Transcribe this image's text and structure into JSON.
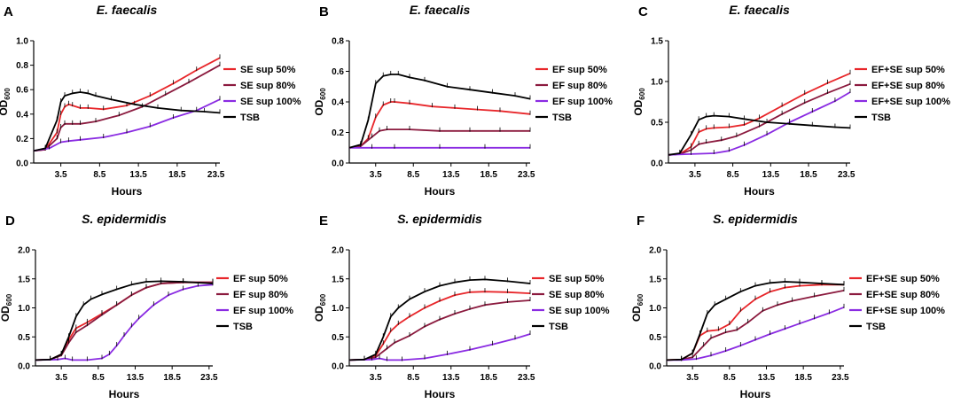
{
  "figure": {
    "x_label": "Hours",
    "y_label_main": "OD",
    "y_label_sub": "600"
  },
  "chart_data": [
    {
      "panel": "A",
      "type": "line",
      "title": "E. faecalis",
      "xlabel": "Hours",
      "ylabel": "OD600",
      "xlim": [
        0,
        24
      ],
      "ylim": [
        0,
        1.0
      ],
      "xticks": [
        3.5,
        8.5,
        13.5,
        18.5,
        23.5
      ],
      "yticks": [
        0.0,
        0.2,
        0.4,
        0.6,
        0.8,
        1.0
      ],
      "ytick_labels": [
        "0.0",
        "0.2",
        "0.4",
        "0.6",
        "0.8",
        "1.0"
      ],
      "series": [
        {
          "name": "SE sup 50%",
          "color": "#e8262a",
          "x": [
            0,
            1.5,
            3,
            3.5,
            4,
            4.5,
            5,
            6,
            7,
            9,
            12,
            15,
            18,
            21,
            24
          ],
          "y": [
            0.1,
            0.11,
            0.25,
            0.4,
            0.46,
            0.48,
            0.47,
            0.45,
            0.45,
            0.44,
            0.47,
            0.55,
            0.65,
            0.76,
            0.86
          ]
        },
        {
          "name": "SE sup 80%",
          "color": "#8b1a3e",
          "x": [
            0,
            1.5,
            3,
            3.5,
            4,
            5,
            6,
            8,
            11,
            14,
            17,
            20,
            24
          ],
          "y": [
            0.1,
            0.11,
            0.2,
            0.29,
            0.32,
            0.32,
            0.32,
            0.34,
            0.39,
            0.46,
            0.56,
            0.66,
            0.8
          ]
        },
        {
          "name": "SE sup 100%",
          "color": "#8a2be2",
          "x": [
            0,
            2,
            3.5,
            4.5,
            6,
            9,
            12,
            15,
            18,
            21,
            24
          ],
          "y": [
            0.1,
            0.12,
            0.17,
            0.18,
            0.19,
            0.21,
            0.25,
            0.3,
            0.37,
            0.43,
            0.52
          ]
        },
        {
          "name": "TSB",
          "color": "#000000",
          "x": [
            0,
            1.5,
            3,
            3.5,
            4,
            5,
            6,
            7,
            8,
            10,
            13,
            16,
            19,
            22,
            24
          ],
          "y": [
            0.1,
            0.12,
            0.35,
            0.5,
            0.55,
            0.57,
            0.58,
            0.57,
            0.55,
            0.52,
            0.48,
            0.45,
            0.43,
            0.42,
            0.41
          ]
        }
      ]
    },
    {
      "panel": "B",
      "type": "line",
      "title": "E. faecalis",
      "xlabel": "Hours",
      "ylabel": "OD600",
      "xlim": [
        0,
        24
      ],
      "ylim": [
        0,
        0.8
      ],
      "xticks": [
        3.5,
        8.5,
        13.5,
        18.5,
        23.5
      ],
      "yticks": [
        0.0,
        0.2,
        0.4,
        0.6,
        0.8
      ],
      "ytick_labels": [
        "0.0",
        "0.2",
        "0.4",
        "0.6",
        "0.8"
      ],
      "series": [
        {
          "name": "EF sup 50%",
          "color": "#e8262a",
          "x": [
            0,
            1.5,
            2.5,
            3.5,
            4.5,
            5.5,
            6,
            8,
            11,
            14,
            17,
            20,
            24
          ],
          "y": [
            0.1,
            0.11,
            0.16,
            0.3,
            0.38,
            0.4,
            0.4,
            0.39,
            0.37,
            0.36,
            0.35,
            0.34,
            0.32
          ]
        },
        {
          "name": "EF sup 80%",
          "color": "#8b1a3e",
          "x": [
            0,
            1.5,
            3,
            4,
            5,
            8,
            12,
            16,
            20,
            24
          ],
          "y": [
            0.1,
            0.11,
            0.17,
            0.21,
            0.22,
            0.22,
            0.21,
            0.21,
            0.21,
            0.21
          ]
        },
        {
          "name": "EF sup 100%",
          "color": "#8a2be2",
          "x": [
            0,
            3,
            6,
            12,
            18,
            24
          ],
          "y": [
            0.1,
            0.1,
            0.1,
            0.1,
            0.1,
            0.1
          ]
        },
        {
          "name": "TSB",
          "color": "#000000",
          "x": [
            0,
            1.5,
            2.5,
            3.5,
            4.5,
            5.5,
            6.5,
            8,
            10,
            13,
            16,
            19,
            22,
            24
          ],
          "y": [
            0.1,
            0.12,
            0.28,
            0.52,
            0.57,
            0.58,
            0.58,
            0.56,
            0.54,
            0.5,
            0.48,
            0.46,
            0.44,
            0.42
          ]
        }
      ]
    },
    {
      "panel": "C",
      "type": "line",
      "title": "E. faecalis",
      "xlabel": "Hours",
      "ylabel": "OD600",
      "xlim": [
        0,
        24
      ],
      "ylim": [
        0,
        1.5
      ],
      "xticks": [
        3.5,
        8.5,
        13.5,
        18.5,
        23.5
      ],
      "yticks": [
        0.0,
        0.5,
        1.0,
        1.5
      ],
      "ytick_labels": [
        "0.0",
        "0.5",
        "1.0",
        "1.5"
      ],
      "series": [
        {
          "name": "EF+SE sup 50%",
          "color": "#e8262a",
          "x": [
            0,
            1.5,
            3,
            4,
            5,
            6,
            8,
            10,
            12,
            15,
            18,
            21,
            24
          ],
          "y": [
            0.1,
            0.11,
            0.2,
            0.38,
            0.42,
            0.43,
            0.44,
            0.47,
            0.55,
            0.7,
            0.85,
            0.98,
            1.1
          ]
        },
        {
          "name": "EF+SE sup 80%",
          "color": "#8b1a3e",
          "x": [
            0,
            1.5,
            3,
            4,
            5,
            7,
            9,
            12,
            15,
            18,
            21,
            24
          ],
          "y": [
            0.1,
            0.11,
            0.16,
            0.23,
            0.25,
            0.28,
            0.33,
            0.45,
            0.6,
            0.74,
            0.86,
            0.97
          ]
        },
        {
          "name": "EF+SE sup 100%",
          "color": "#8a2be2",
          "x": [
            0,
            3,
            6,
            8,
            10,
            13,
            16,
            19,
            22,
            24
          ],
          "y": [
            0.1,
            0.11,
            0.12,
            0.15,
            0.22,
            0.35,
            0.5,
            0.63,
            0.76,
            0.87
          ]
        },
        {
          "name": "TSB",
          "color": "#000000",
          "x": [
            0,
            1.5,
            3,
            4,
            5,
            6,
            8,
            10,
            13,
            16,
            19,
            22,
            24
          ],
          "y": [
            0.1,
            0.12,
            0.35,
            0.53,
            0.57,
            0.58,
            0.57,
            0.54,
            0.5,
            0.48,
            0.46,
            0.44,
            0.43
          ]
        }
      ]
    },
    {
      "panel": "D",
      "type": "line",
      "title": "S. epidermidis",
      "xlabel": "Hours",
      "ylabel": "OD600",
      "xlim": [
        0,
        24
      ],
      "ylim": [
        0,
        2.0
      ],
      "xticks": [
        3.5,
        8.5,
        13.5,
        18.5,
        23.5
      ],
      "yticks": [
        0.0,
        0.5,
        1.0,
        1.5,
        2.0
      ],
      "ytick_labels": [
        "0.0",
        "0.5",
        "1.0",
        "1.5",
        "2.0"
      ],
      "series": [
        {
          "name": "EF sup 50%",
          "color": "#e8262a",
          "x": [
            0,
            2,
            3.5,
            4.5,
            5.5,
            7,
            9,
            11,
            13,
            15,
            17,
            20,
            24
          ],
          "y": [
            0.1,
            0.11,
            0.2,
            0.45,
            0.65,
            0.75,
            0.9,
            1.05,
            1.22,
            1.35,
            1.42,
            1.44,
            1.44
          ]
        },
        {
          "name": "EF sup 80%",
          "color": "#8b1a3e",
          "x": [
            0,
            2,
            3.5,
            4.5,
            5.5,
            7,
            9,
            11,
            13,
            15,
            17,
            20,
            24
          ],
          "y": [
            0.1,
            0.11,
            0.18,
            0.4,
            0.58,
            0.7,
            0.88,
            1.05,
            1.22,
            1.35,
            1.42,
            1.44,
            1.44
          ]
        },
        {
          "name": "EF sup 100%",
          "color": "#8a2be2",
          "x": [
            0,
            3,
            4,
            5,
            7,
            9,
            10,
            11,
            12,
            13,
            14,
            16,
            18,
            20,
            22,
            24
          ],
          "y": [
            0.1,
            0.11,
            0.13,
            0.1,
            0.1,
            0.13,
            0.2,
            0.35,
            0.52,
            0.68,
            0.82,
            1.05,
            1.22,
            1.32,
            1.38,
            1.4
          ]
        },
        {
          "name": "TSB",
          "color": "#000000",
          "x": [
            0,
            2,
            3.5,
            4.5,
            5.5,
            6.5,
            7.5,
            9,
            11,
            13,
            15,
            17,
            20,
            24
          ],
          "y": [
            0.1,
            0.11,
            0.2,
            0.5,
            0.85,
            1.05,
            1.15,
            1.23,
            1.32,
            1.4,
            1.45,
            1.46,
            1.45,
            1.42
          ]
        }
      ]
    },
    {
      "panel": "E",
      "type": "line",
      "title": "S. epidermidis",
      "xlabel": "Hours",
      "ylabel": "OD600",
      "xlim": [
        0,
        24
      ],
      "ylim": [
        0,
        2.0
      ],
      "xticks": [
        3.5,
        8.5,
        13.5,
        18.5,
        23.5
      ],
      "yticks": [
        0.0,
        0.5,
        1.0,
        1.5,
        2.0
      ],
      "ytick_labels": [
        "0.0",
        "0.5",
        "1.0",
        "1.5",
        "2.0"
      ],
      "series": [
        {
          "name": "SE sup 50%",
          "color": "#e8262a",
          "x": [
            0,
            2,
            3.5,
            4.5,
            5.5,
            6.5,
            8,
            10,
            12,
            14,
            16,
            18,
            21,
            24
          ],
          "y": [
            0.1,
            0.11,
            0.18,
            0.38,
            0.6,
            0.72,
            0.85,
            1.0,
            1.12,
            1.22,
            1.27,
            1.28,
            1.27,
            1.25
          ]
        },
        {
          "name": "SE sup 80%",
          "color": "#8b1a3e",
          "x": [
            0,
            2,
            3.5,
            5,
            6,
            8,
            10,
            12,
            14,
            16,
            18,
            21,
            24
          ],
          "y": [
            0.1,
            0.11,
            0.15,
            0.3,
            0.4,
            0.52,
            0.68,
            0.8,
            0.9,
            0.98,
            1.05,
            1.1,
            1.13
          ]
        },
        {
          "name": "SE sup 100%",
          "color": "#8a2be2",
          "x": [
            0,
            3,
            4,
            5,
            7,
            10,
            13,
            16,
            19,
            22,
            24
          ],
          "y": [
            0.1,
            0.11,
            0.13,
            0.1,
            0.1,
            0.13,
            0.2,
            0.28,
            0.37,
            0.47,
            0.55
          ]
        },
        {
          "name": "TSB",
          "color": "#000000",
          "x": [
            0,
            2,
            3.5,
            4.5,
            5.5,
            6.5,
            8,
            10,
            12,
            14,
            16,
            18,
            21,
            24
          ],
          "y": [
            0.1,
            0.11,
            0.2,
            0.5,
            0.85,
            1.0,
            1.15,
            1.28,
            1.38,
            1.44,
            1.48,
            1.49,
            1.46,
            1.42
          ]
        }
      ]
    },
    {
      "panel": "F",
      "type": "line",
      "title": "S. epidermidis",
      "xlabel": "Hours",
      "ylabel": "OD600",
      "xlim": [
        0,
        24
      ],
      "ylim": [
        0,
        2.0
      ],
      "xticks": [
        3.5,
        8.5,
        13.5,
        18.5,
        23.5
      ],
      "yticks": [
        0.0,
        0.5,
        1.0,
        1.5,
        2.0
      ],
      "ytick_labels": [
        "0.0",
        "0.5",
        "1.0",
        "1.5",
        "2.0"
      ],
      "series": [
        {
          "name": "EF+SE sup 50%",
          "color": "#e8262a",
          "x": [
            0,
            2,
            3.5,
            4.5,
            5.5,
            7,
            8.5,
            10,
            12,
            14,
            16,
            18,
            21,
            24
          ],
          "y": [
            0.1,
            0.11,
            0.22,
            0.52,
            0.6,
            0.62,
            0.72,
            0.95,
            1.15,
            1.28,
            1.35,
            1.38,
            1.4,
            1.4
          ]
        },
        {
          "name": "EF+SE sup 80%",
          "color": "#8b1a3e",
          "x": [
            0,
            2,
            3.5,
            5,
            6,
            8,
            9.5,
            11,
            13,
            15,
            17,
            20,
            24
          ],
          "y": [
            0.1,
            0.11,
            0.15,
            0.35,
            0.48,
            0.58,
            0.62,
            0.75,
            0.95,
            1.05,
            1.12,
            1.2,
            1.3
          ]
        },
        {
          "name": "EF+SE sup 100%",
          "color": "#8a2be2",
          "x": [
            0,
            2,
            4,
            6,
            8,
            10,
            12,
            14,
            16,
            18,
            20,
            22,
            24
          ],
          "y": [
            0.1,
            0.1,
            0.12,
            0.18,
            0.26,
            0.35,
            0.45,
            0.55,
            0.64,
            0.73,
            0.82,
            0.91,
            1.01
          ]
        },
        {
          "name": "TSB",
          "color": "#000000",
          "x": [
            0,
            2,
            3.5,
            4.5,
            5.5,
            6.5,
            8,
            10,
            12,
            14,
            16,
            18,
            21,
            24
          ],
          "y": [
            0.1,
            0.11,
            0.22,
            0.55,
            0.9,
            1.05,
            1.15,
            1.28,
            1.38,
            1.43,
            1.45,
            1.44,
            1.42,
            1.4
          ]
        }
      ]
    }
  ]
}
